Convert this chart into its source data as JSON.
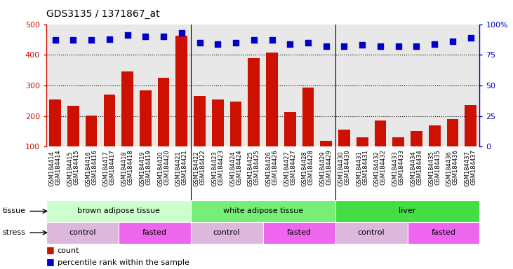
{
  "title": "GDS3135 / 1371867_at",
  "samples": [
    "GSM184414",
    "GSM184415",
    "GSM184416",
    "GSM184417",
    "GSM184418",
    "GSM184419",
    "GSM184420",
    "GSM184421",
    "GSM184422",
    "GSM184423",
    "GSM184424",
    "GSM184425",
    "GSM184426",
    "GSM184427",
    "GSM184428",
    "GSM184429",
    "GSM184430",
    "GSM184431",
    "GSM184432",
    "GSM184433",
    "GSM184434",
    "GSM184435",
    "GSM184436",
    "GSM184437"
  ],
  "counts": [
    255,
    233,
    201,
    270,
    345,
    284,
    325,
    462,
    265,
    253,
    248,
    390,
    408,
    212,
    292,
    120,
    155,
    130,
    185,
    130,
    150,
    170,
    190,
    235
  ],
  "percentiles": [
    87,
    87,
    87,
    88,
    91,
    90,
    90,
    93,
    85,
    84,
    85,
    87,
    87,
    84,
    85,
    82,
    82,
    83,
    82,
    82,
    82,
    84,
    86,
    89
  ],
  "tissues": [
    {
      "label": "brown adipose tissue",
      "start": 0,
      "end": 8,
      "color": "#ccffcc"
    },
    {
      "label": "white adipose tissue",
      "start": 8,
      "end": 16,
      "color": "#77ee77"
    },
    {
      "label": "liver",
      "start": 16,
      "end": 24,
      "color": "#44dd44"
    }
  ],
  "stresses": [
    {
      "label": "control",
      "start": 0,
      "end": 4,
      "color": "#ddb8dd"
    },
    {
      "label": "fasted",
      "start": 4,
      "end": 8,
      "color": "#ee66ee"
    },
    {
      "label": "control",
      "start": 8,
      "end": 12,
      "color": "#ddb8dd"
    },
    {
      "label": "fasted",
      "start": 12,
      "end": 16,
      "color": "#ee66ee"
    },
    {
      "label": "control",
      "start": 16,
      "end": 20,
      "color": "#ddb8dd"
    },
    {
      "label": "fasted",
      "start": 20,
      "end": 24,
      "color": "#ee66ee"
    }
  ],
  "bar_color": "#cc1100",
  "dot_color": "#0000cc",
  "ylim_left": [
    100,
    500
  ],
  "ylim_right": [
    0,
    100
  ],
  "yticks_left": [
    100,
    200,
    300,
    400,
    500
  ],
  "yticks_right": [
    0,
    25,
    50,
    75,
    100
  ],
  "grid_values": [
    200,
    300,
    400
  ],
  "bg_color": "#ffffff",
  "plot_bg_color": "#e8e8e8",
  "xlabel_bg_color": "#d0d0d0",
  "label_count": "count",
  "label_percentile": "percentile rank within the sample",
  "tissue_label": "tissue",
  "stress_label": "stress"
}
